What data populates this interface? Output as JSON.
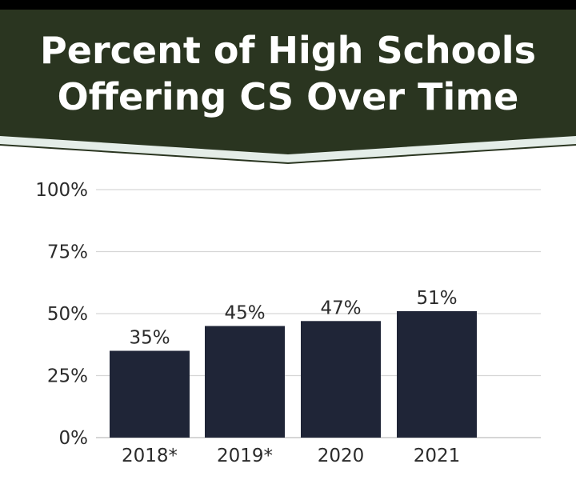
{
  "title_lines": [
    "Percent of High Schools",
    "Offering CS Over Time"
  ],
  "colors": {
    "banner": "#2a3520",
    "banner_stripe": "#e4ede8",
    "bar": "#1f2537",
    "grid": "#d6d6d6",
    "text": "#2b2b2b"
  },
  "chart_data": {
    "type": "bar",
    "title": "Percent of High Schools Offering CS Over Time",
    "xlabel": "",
    "ylabel": "",
    "categories": [
      "2018*",
      "2019*",
      "2020",
      "2021"
    ],
    "values": [
      35,
      45,
      47,
      51
    ],
    "data_labels": [
      "35%",
      "45%",
      "47%",
      "51%"
    ],
    "ylim": [
      0,
      100
    ],
    "yticks": [
      0,
      25,
      50,
      75,
      100
    ],
    "ytick_labels": [
      "0%",
      "25%",
      "50%",
      "75%",
      "100%"
    ],
    "grid": true,
    "legend": "none"
  }
}
